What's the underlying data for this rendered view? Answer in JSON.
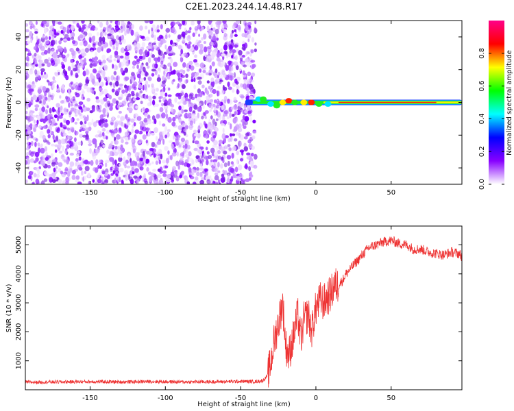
{
  "title": "C2E1.2023.244.14.48.R17",
  "chart_data": [
    {
      "type": "heatmap",
      "xlabel": "Height of straight line (km)",
      "ylabel": "Frequency (Hz)",
      "xlim": [
        -193,
        97
      ],
      "ylim": [
        -50,
        50
      ],
      "x_ticks": [
        -150,
        -100,
        -50,
        0,
        50
      ],
      "y_ticks": [
        -40,
        -20,
        0,
        20,
        40
      ],
      "noise_region_x": [
        -193,
        -40
      ],
      "tone_start_x": -47,
      "tone_frequency_hz": 0,
      "colorbar": {
        "label": "Normalized spectral amplitude",
        "range": [
          0,
          1
        ],
        "ticks": [
          0.0,
          0.2,
          0.4,
          0.6,
          0.8
        ],
        "tick_labels": [
          "0.0",
          "0.2",
          "0.4",
          "0.6",
          "0.8"
        ],
        "colormap": [
          "#ffffff",
          "#8800ff",
          "#0000ff",
          "#00ffff",
          "#00ff00",
          "#ffff00",
          "#ff0000",
          "#ff0088"
        ]
      },
      "grid": false
    },
    {
      "type": "line",
      "xlabel": "Height of straight line (km)",
      "ylabel": "SNR (10 * v/v)",
      "xlim": [
        -193,
        97
      ],
      "ylim": [
        0,
        5650
      ],
      "x_ticks": [
        -150,
        -100,
        -50,
        0,
        50
      ],
      "y_ticks": [
        1000,
        2000,
        3000,
        4000,
        5000
      ],
      "color": "#ee3333",
      "grid": false,
      "series": [
        {
          "x": [
            -193,
            -170,
            -150,
            -130,
            -110,
            -90,
            -70,
            -50,
            -40,
            -35,
            -32,
            -30,
            -28,
            -25,
            -22,
            -20,
            -18,
            -15,
            -12,
            -10,
            -8,
            -5,
            -3,
            0,
            3,
            5,
            8,
            10,
            12,
            15,
            18,
            20,
            25,
            30,
            35,
            40,
            45,
            50,
            55,
            60,
            65,
            70,
            75,
            80,
            85,
            90,
            95,
            97
          ],
          "y": [
            260,
            270,
            280,
            270,
            285,
            270,
            275,
            290,
            280,
            320,
            500,
            900,
            1600,
            2300,
            3000,
            1500,
            1200,
            1800,
            2600,
            1700,
            2400,
            2600,
            2000,
            2800,
            3100,
            3000,
            3200,
            3300,
            3600,
            3600,
            3800,
            4000,
            4300,
            4600,
            4900,
            5000,
            5100,
            5150,
            5050,
            5000,
            4850,
            4850,
            4750,
            4700,
            4650,
            4750,
            4700,
            4600
          ]
        }
      ]
    }
  ]
}
